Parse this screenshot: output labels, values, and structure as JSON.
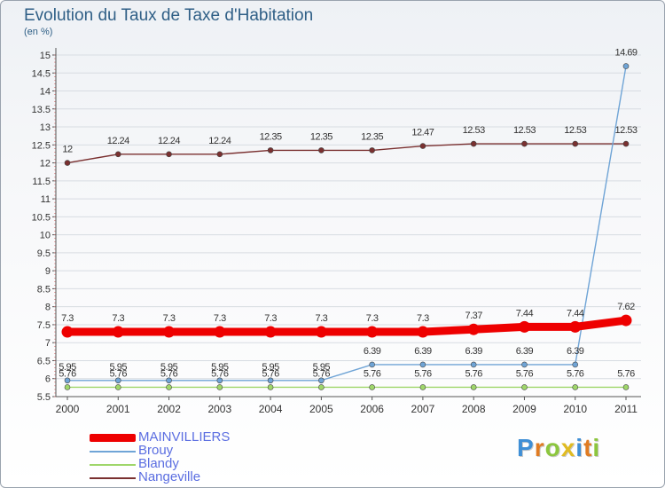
{
  "page": {
    "title": "Evolution du Taux de Taxe d'Habitation",
    "subtitle": "(en %)"
  },
  "chart_data": {
    "type": "line",
    "title": "Evolution du Taux de Taxe d'Habitation",
    "ylabel": "(en %)",
    "ylim": [
      5.5,
      15
    ],
    "yticks": [
      "5.5",
      "6",
      "6.5",
      "7",
      "7.5",
      "8",
      "8.5",
      "9",
      "9.5",
      "10",
      "10.5",
      "11",
      "11.5",
      "12",
      "12.5",
      "13",
      "13.5",
      "14",
      "14.5",
      "15"
    ],
    "categories": [
      "2000",
      "2001",
      "2002",
      "2003",
      "2004",
      "2005",
      "2006",
      "2007",
      "2008",
      "2009",
      "2010",
      "2011"
    ],
    "series": [
      {
        "name": "MAINVILLIERS",
        "color": "#ee0000",
        "values": [
          7.3,
          7.3,
          7.3,
          7.3,
          7.3,
          7.3,
          7.3,
          7.3,
          7.37,
          7.44,
          7.44,
          7.62
        ],
        "labels": [
          "7.3",
          "7.3",
          "7.3",
          "7.3",
          "7.3",
          "7.3",
          "7.3",
          "7.3",
          "7.37",
          "7.44",
          "7.44",
          "7.62"
        ]
      },
      {
        "name": "Brouy",
        "color": "#6fa4d6",
        "values": [
          5.95,
          5.95,
          5.95,
          5.95,
          5.95,
          5.95,
          6.39,
          6.39,
          6.39,
          6.39,
          6.39,
          14.69
        ],
        "labels": [
          "5.95",
          "5.95",
          "5.95",
          "5.95",
          "5.95",
          "5.95",
          "6.39",
          "6.39",
          "6.39",
          "6.39",
          "6.39",
          "14.69"
        ]
      },
      {
        "name": "Blandy",
        "color": "#9fd66a",
        "values": [
          5.76,
          5.76,
          5.76,
          5.76,
          5.76,
          5.76,
          5.76,
          5.76,
          5.76,
          5.76,
          5.76,
          5.76
        ],
        "labels": [
          "5.76",
          "5.76",
          "5.76",
          "5.76",
          "5.76",
          "5.76",
          "5.76",
          "5.76",
          "5.76",
          "5.76",
          "5.76",
          "5.76"
        ]
      },
      {
        "name": "Nangeville",
        "color": "#7a3030",
        "values": [
          12,
          12.24,
          12.24,
          12.24,
          12.35,
          12.35,
          12.35,
          12.47,
          12.53,
          12.53,
          12.53,
          12.53
        ],
        "labels": [
          "12",
          "12.24",
          "12.24",
          "12.24",
          "12.35",
          "12.35",
          "12.35",
          "12.47",
          "12.53",
          "12.53",
          "12.53",
          "12.53"
        ]
      }
    ]
  },
  "legend": [
    {
      "label": "MAINVILLIERS",
      "color": "#ee0000"
    },
    {
      "label": "Brouy",
      "color": "#6fa4d6"
    },
    {
      "label": "Blandy",
      "color": "#9fd66a"
    },
    {
      "label": "Nangeville",
      "color": "#7a3030"
    }
  ],
  "logo": {
    "letters": [
      "P",
      "r",
      "o",
      "x",
      "i",
      "t",
      "i"
    ],
    "colors": [
      "#3f8fd6",
      "#e07b22",
      "#8cc63e",
      "#e0bb22",
      "#3f8fd6",
      "#e07b22",
      "#8cc63e"
    ]
  }
}
